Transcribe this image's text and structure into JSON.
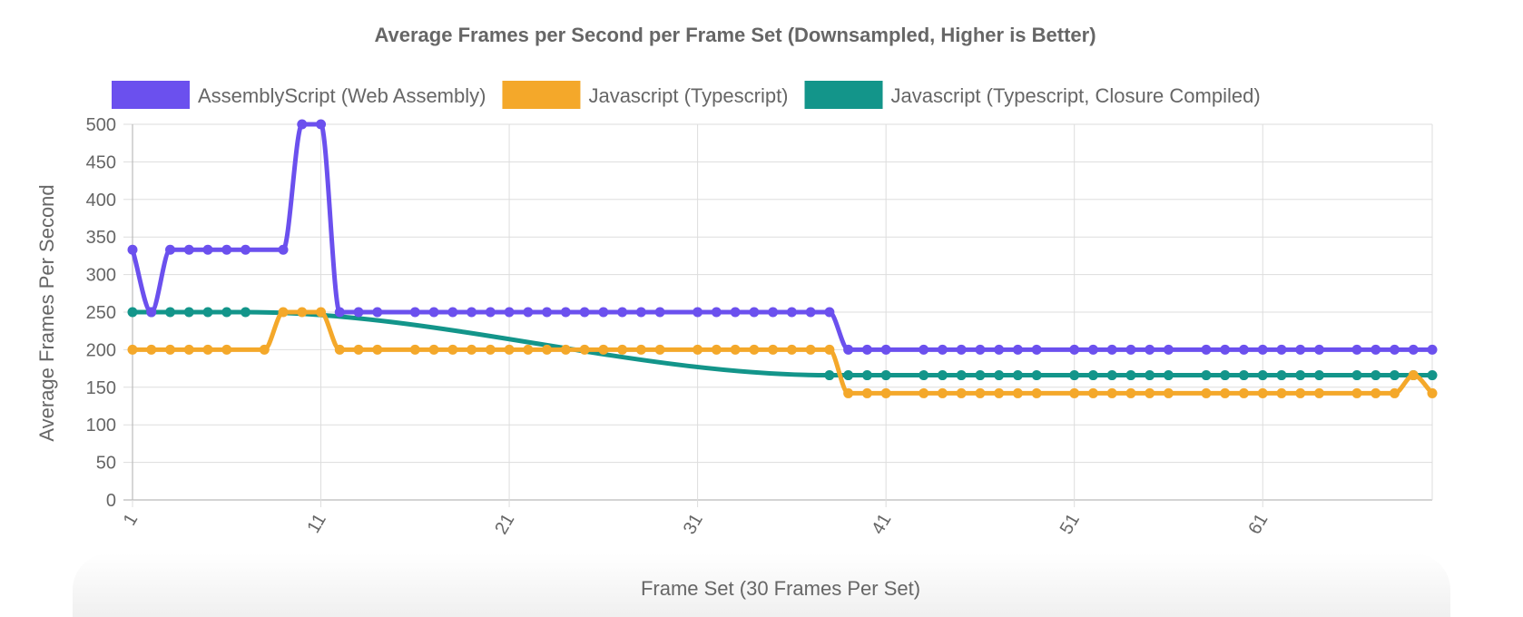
{
  "chart_data": {
    "type": "line",
    "title": "Average Frames per Second per Frame Set (Downsampled, Higher is Better)",
    "xlabel": "Frame Set (30 Frames Per Set)",
    "ylabel": "Average Frames Per Second",
    "ylim": [
      0,
      500
    ],
    "yticks": [
      0,
      50,
      100,
      150,
      200,
      250,
      300,
      350,
      400,
      450,
      500
    ],
    "x": [
      1,
      2,
      3,
      4,
      5,
      6,
      7,
      8,
      9,
      10,
      11,
      12,
      13,
      14,
      15,
      16,
      17,
      18,
      19,
      20,
      21,
      22,
      23,
      24,
      25,
      26,
      27,
      28,
      29,
      30,
      31,
      32,
      33,
      34,
      35,
      36,
      37,
      38,
      39,
      40,
      41,
      42,
      43,
      44,
      45,
      46,
      47,
      48,
      49,
      50,
      51,
      52,
      53,
      54,
      55,
      56,
      57,
      58,
      59,
      60,
      61,
      62,
      63,
      64,
      65,
      66,
      67,
      68,
      69,
      70
    ],
    "xticks": [
      "1",
      "11",
      "21",
      "31",
      "41",
      "51",
      "61"
    ],
    "grid": true,
    "legend_position": "top",
    "series": [
      {
        "name": "AssemblyScript (Web Assembly)",
        "color": "#6b50ee",
        "values": [
          333,
          250,
          333,
          333,
          333,
          333,
          333,
          null,
          333,
          500,
          500,
          250,
          250,
          250,
          null,
          250,
          250,
          250,
          250,
          250,
          250,
          250,
          250,
          250,
          250,
          250,
          250,
          250,
          250,
          null,
          250,
          250,
          250,
          250,
          250,
          250,
          250,
          250,
          200,
          200,
          200,
          null,
          200,
          200,
          200,
          200,
          200,
          200,
          200,
          null,
          200,
          200,
          200,
          200,
          200,
          200,
          null,
          200,
          200,
          200,
          200,
          200,
          200,
          200,
          null,
          200,
          200,
          200,
          200,
          200
        ]
      },
      {
        "name": "Javascript (Typescript)",
        "color": "#f4a82a",
        "values": [
          200,
          200,
          200,
          200,
          200,
          200,
          null,
          200,
          250,
          250,
          250,
          200,
          200,
          200,
          null,
          200,
          200,
          200,
          200,
          200,
          200,
          200,
          200,
          200,
          200,
          200,
          200,
          200,
          200,
          null,
          200,
          200,
          200,
          200,
          200,
          200,
          200,
          200,
          142,
          142,
          142,
          null,
          142,
          142,
          142,
          142,
          142,
          142,
          142,
          null,
          142,
          142,
          142,
          142,
          142,
          142,
          null,
          142,
          142,
          142,
          142,
          142,
          142,
          142,
          null,
          142,
          142,
          142,
          166,
          142
        ]
      },
      {
        "name": "Javascript (Typescript, Closure Compiled)",
        "color": "#13958a",
        "values": [
          250,
          250,
          250,
          250,
          250,
          250,
          250,
          null,
          null,
          null,
          null,
          null,
          null,
          null,
          null,
          null,
          null,
          null,
          null,
          null,
          null,
          null,
          null,
          null,
          null,
          null,
          null,
          null,
          null,
          null,
          null,
          null,
          null,
          null,
          null,
          null,
          null,
          166,
          166,
          166,
          166,
          null,
          166,
          166,
          166,
          166,
          166,
          166,
          166,
          null,
          166,
          166,
          166,
          166,
          166,
          166,
          null,
          166,
          166,
          166,
          166,
          166,
          166,
          166,
          null,
          166,
          166,
          166,
          166,
          166
        ]
      }
    ]
  }
}
